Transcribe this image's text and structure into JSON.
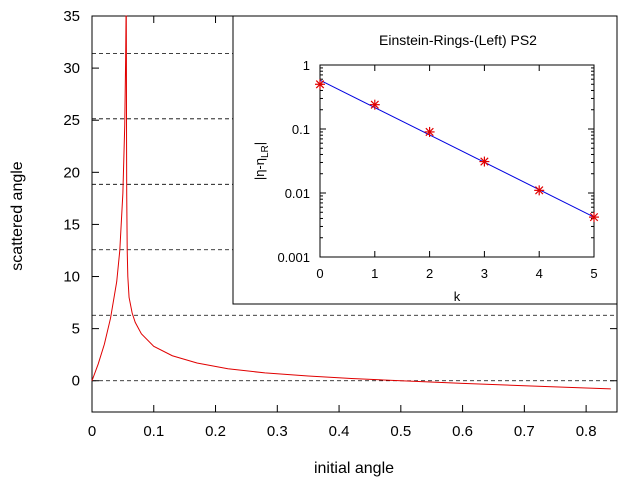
{
  "chart_data": [
    {
      "type": "line",
      "xlabel": "initial angle",
      "ylabel": "scattered angle",
      "xlim": [
        0,
        0.85
      ],
      "ylim": [
        -3,
        35
      ],
      "x_ticks": [
        "0",
        "0.1",
        "0.2",
        "0.3",
        "0.4",
        "0.5",
        "0.6",
        "0.7",
        "0.8"
      ],
      "y_ticks": [
        "0",
        "5",
        "10",
        "15",
        "20",
        "25",
        "30",
        "35"
      ],
      "grid": false,
      "reference_lines_y": [
        0,
        6.283,
        12.566,
        18.85,
        25.133,
        31.416
      ],
      "reference_line_style": "dashed",
      "series": [
        {
          "color": "#e00000",
          "x": [
            0,
            0.01,
            0.02,
            0.03,
            0.04,
            0.045,
            0.05,
            0.053,
            0.0545,
            0.0551,
            0.0553,
            0.0555,
            0.0557,
            0.0559,
            0.0562,
            0.057,
            0.058,
            0.06,
            0.065,
            0.07,
            0.08,
            0.1,
            0.13,
            0.17,
            0.22,
            0.28,
            0.35,
            0.42,
            0.5,
            0.6,
            0.7,
            0.8,
            0.84
          ],
          "y": [
            0,
            1.6,
            3.5,
            6.0,
            9.5,
            12.5,
            18.0,
            24.5,
            31.0,
            36.0,
            36.0,
            36.0,
            31.0,
            24.0,
            18.0,
            12.5,
            10.0,
            8.0,
            6.5,
            5.6,
            4.5,
            3.3,
            2.4,
            1.7,
            1.15,
            0.75,
            0.45,
            0.22,
            0.0,
            -0.25,
            -0.48,
            -0.7,
            -0.78
          ]
        }
      ]
    },
    {
      "type": "line",
      "title": "Einstein-Rings-(Left) PS2",
      "xlabel": "k",
      "ylabel": "|η-η",
      "ylabel_subscript": "LR",
      "ylabel_suffix": "|",
      "xlim": [
        0,
        5
      ],
      "ylim": [
        0.001,
        1
      ],
      "y_scale": "log",
      "x_ticks": [
        "0",
        "1",
        "2",
        "3",
        "4",
        "5"
      ],
      "y_ticks": [
        "0.001",
        "0.01",
        "0.1",
        "1"
      ],
      "series": [
        {
          "style": "markers",
          "marker": "star",
          "color": "#e00000",
          "x": [
            0,
            1,
            2,
            3,
            4,
            5
          ],
          "y": [
            0.5,
            0.24,
            0.09,
            0.031,
            0.011,
            0.0042
          ]
        },
        {
          "style": "line",
          "color": "#0000e0",
          "x": [
            0,
            5
          ],
          "y": [
            0.58,
            0.0042
          ]
        }
      ]
    }
  ]
}
